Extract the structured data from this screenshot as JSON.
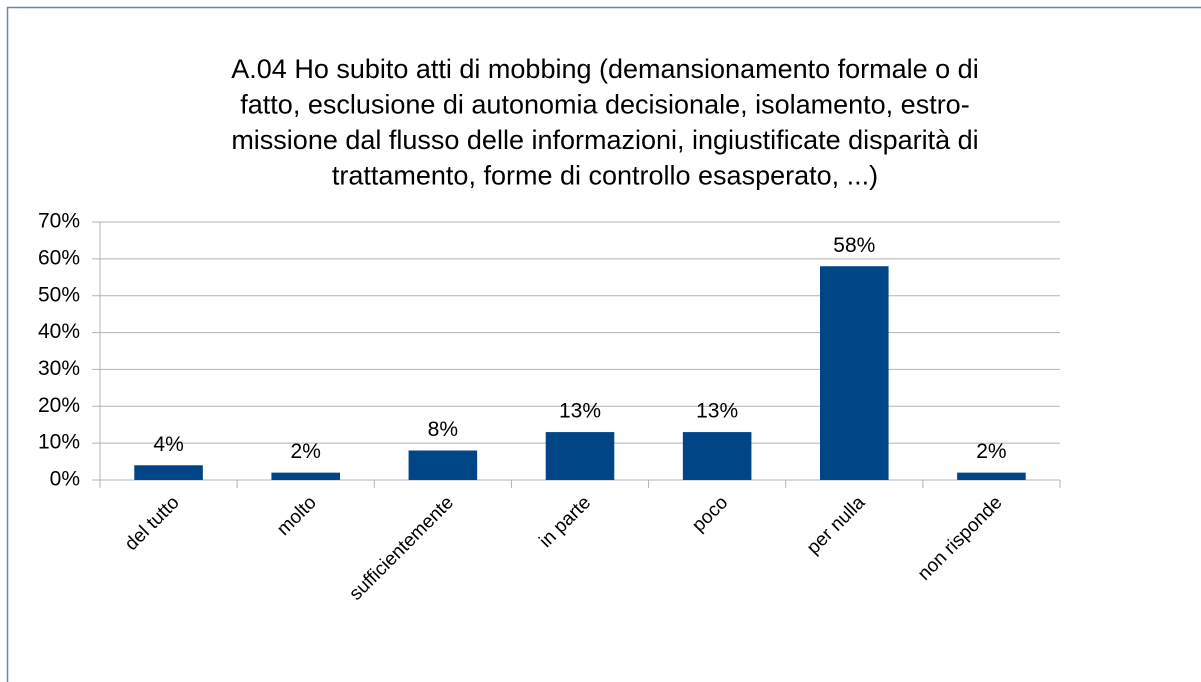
{
  "chart_data": {
    "type": "bar",
    "title": [
      "A.04 Ho subito atti di mobbing (demansionamento formale o di",
      "fatto, esclusione di autonomia decisionale, isolamento, estro-",
      "missione dal flusso delle informazioni, ingiustificate disparità di",
      "trattamento, forme di controllo esasperato, ...)"
    ],
    "categories": [
      "del tutto",
      "molto",
      "sufficientemente",
      "in parte",
      "poco",
      "per nulla",
      "non risponde"
    ],
    "values": [
      4,
      2,
      8,
      13,
      13,
      58,
      2
    ],
    "value_labels": [
      "4%",
      "2%",
      "8%",
      "13%",
      "13%",
      "58%",
      "2%"
    ],
    "color": "#004586",
    "ylim": [
      0,
      70
    ],
    "yticks": [
      {
        "value": 0,
        "label": "0%"
      },
      {
        "value": 10,
        "label": "10%"
      },
      {
        "value": 20,
        "label": "20%"
      },
      {
        "value": 30,
        "label": "30%"
      },
      {
        "value": 40,
        "label": "40%"
      },
      {
        "value": 50,
        "label": "50%"
      },
      {
        "value": 60,
        "label": "60%"
      },
      {
        "value": 70,
        "label": "70%"
      }
    ],
    "grid": true
  }
}
